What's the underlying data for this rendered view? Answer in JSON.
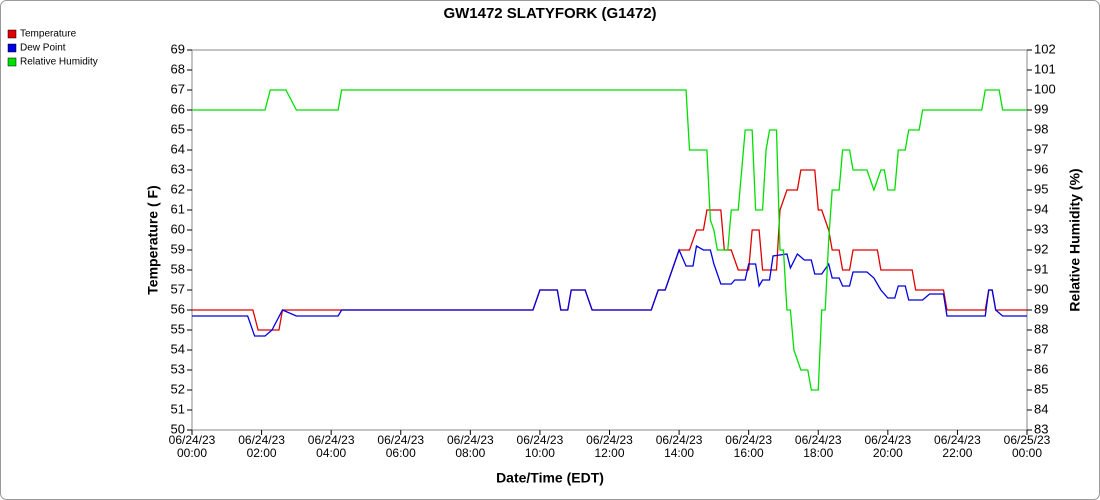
{
  "chart_data": {
    "type": "line",
    "title": "GW1472 SLATYFORK (G1472)",
    "x_label": "Date/Time (EDT)",
    "y_label": "Temperature ( F)",
    "y2_label": "Relative Humidity (%)",
    "legend": "top-left",
    "xlim": [
      0,
      24
    ],
    "xticks": [
      {
        "value": 0,
        "label": "06/24/23\n00:00"
      },
      {
        "value": 2,
        "label": "06/24/23\n02:00"
      },
      {
        "value": 4,
        "label": "06/24/23\n04:00"
      },
      {
        "value": 6,
        "label": "06/24/23\n06:00"
      },
      {
        "value": 8,
        "label": "06/24/23\n08:00"
      },
      {
        "value": 10,
        "label": "06/24/23\n10:00"
      },
      {
        "value": 12,
        "label": "06/24/23\n12:00"
      },
      {
        "value": 14,
        "label": "06/24/23\n14:00"
      },
      {
        "value": 16,
        "label": "06/24/23\n16:00"
      },
      {
        "value": 18,
        "label": "06/24/23\n18:00"
      },
      {
        "value": 20,
        "label": "06/24/23\n20:00"
      },
      {
        "value": 22,
        "label": "06/24/23\n22:00"
      },
      {
        "value": 24,
        "label": "06/25/23\n00:00"
      }
    ],
    "ylim": [
      50,
      69
    ],
    "yticks": [
      50,
      51,
      52,
      53,
      54,
      55,
      56,
      57,
      58,
      59,
      60,
      61,
      62,
      63,
      64,
      65,
      66,
      67,
      68,
      69
    ],
    "y2lim": [
      83,
      102
    ],
    "y2ticks": [
      83,
      84,
      85,
      86,
      87,
      88,
      89,
      90,
      91,
      92,
      93,
      94,
      95,
      96,
      97,
      98,
      99,
      100,
      101,
      102
    ],
    "series": [
      {
        "name": "Temperature",
        "color": "#e00000",
        "x": [
          0,
          1.75,
          1.9,
          2.5,
          2.6,
          9.8,
          10.0,
          10.5,
          10.6,
          10.8,
          10.9,
          11.3,
          11.5,
          13.2,
          13.4,
          13.6,
          13.8,
          14.0,
          14.3,
          14.5,
          14.7,
          14.8,
          15.2,
          15.3,
          15.5,
          15.7,
          16.0,
          16.1,
          16.3,
          16.4,
          16.8,
          16.9,
          17.1,
          17.4,
          17.5,
          17.9,
          18.0,
          18.1,
          18.3,
          18.4,
          18.6,
          18.7,
          18.9,
          19.0,
          19.7,
          19.8,
          20.7,
          20.8,
          21.6,
          21.7,
          22.8,
          22.9,
          23.0,
          23.1,
          24.0
        ],
        "values": [
          56,
          56,
          55,
          55,
          56,
          56,
          57,
          57,
          56,
          56,
          57,
          57,
          56,
          56,
          57,
          57,
          58,
          59,
          59,
          60,
          60,
          61,
          61,
          59,
          59,
          58,
          58,
          60,
          60,
          58,
          58,
          61,
          62,
          62,
          63,
          63,
          61,
          61,
          60,
          59,
          59,
          58,
          58,
          59,
          59,
          58,
          58,
          57,
          57,
          56,
          56,
          57,
          57,
          56,
          56
        ]
      },
      {
        "name": "Dew Point",
        "color": "#0000e0",
        "x": [
          0,
          1.6,
          1.8,
          2.1,
          2.3,
          2.6,
          3.0,
          4.2,
          4.3,
          9.8,
          10.0,
          10.5,
          10.6,
          10.8,
          10.9,
          11.3,
          11.5,
          13.2,
          13.4,
          13.6,
          13.8,
          14.0,
          14.2,
          14.4,
          14.5,
          14.7,
          14.9,
          15.0,
          15.2,
          15.5,
          15.6,
          15.9,
          16.0,
          16.2,
          16.3,
          16.4,
          16.6,
          16.7,
          17.1,
          17.2,
          17.4,
          17.6,
          17.8,
          17.9,
          18.1,
          18.3,
          18.4,
          18.6,
          18.7,
          18.9,
          19.0,
          19.4,
          19.6,
          19.8,
          20.0,
          20.2,
          20.3,
          20.5,
          20.6,
          21.0,
          21.2,
          21.6,
          21.7,
          22.8,
          22.9,
          23.0,
          23.1,
          23.3,
          24.0
        ],
        "values": [
          55.7,
          55.7,
          54.7,
          54.7,
          55,
          56,
          55.7,
          55.7,
          56,
          56,
          57,
          57,
          56,
          56,
          57,
          57,
          56,
          56,
          57,
          57,
          58,
          59,
          58.2,
          58.2,
          59.2,
          59,
          59,
          58.3,
          57.3,
          57.3,
          57.5,
          57.5,
          58.3,
          58.3,
          57.2,
          57.5,
          57.5,
          58.7,
          58.8,
          58.1,
          58.8,
          58.5,
          58.5,
          57.8,
          57.8,
          58.3,
          57.6,
          57.6,
          57.2,
          57.2,
          57.9,
          57.9,
          57.6,
          57,
          56.6,
          56.6,
          57.2,
          57.2,
          56.5,
          56.5,
          56.8,
          56.8,
          55.7,
          55.7,
          57,
          57,
          56,
          55.7,
          55.7
        ]
      },
      {
        "name": "Relative Humidity",
        "color": "#00e000",
        "axis": "y2",
        "x": [
          0,
          2.1,
          2.25,
          2.7,
          3.0,
          4.2,
          4.3,
          14.2,
          14.3,
          14.8,
          14.9,
          15.0,
          15.1,
          15.4,
          15.5,
          15.7,
          15.9,
          16.1,
          16.2,
          16.4,
          16.5,
          16.6,
          16.8,
          16.9,
          17.0,
          17.1,
          17.2,
          17.3,
          17.4,
          17.5,
          17.7,
          17.8,
          18.0,
          18.1,
          18.2,
          18.3,
          18.4,
          18.6,
          18.7,
          18.9,
          19.0,
          19.4,
          19.6,
          19.8,
          19.9,
          20.0,
          20.2,
          20.3,
          20.5,
          20.6,
          20.9,
          21.0,
          22.7,
          22.8,
          23.2,
          23.3,
          24.0
        ],
        "values": [
          99,
          99,
          100,
          100,
          99,
          99,
          100,
          100,
          97,
          97,
          93.5,
          93,
          92,
          92,
          94,
          94,
          98,
          98,
          94,
          94,
          97,
          98,
          98,
          92,
          92,
          89,
          89,
          87,
          86.5,
          86,
          86,
          85,
          85,
          89,
          89,
          92.5,
          95,
          95,
          97,
          97,
          96,
          96,
          95,
          96,
          96,
          95,
          95,
          97,
          97,
          98,
          98,
          99,
          99,
          100,
          100,
          99,
          99
        ]
      }
    ]
  }
}
